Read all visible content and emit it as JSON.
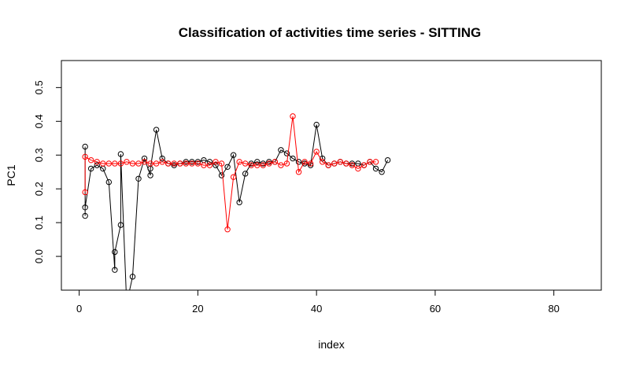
{
  "chart_data": {
    "type": "line",
    "title": "Classification of activities time series -  SITTING",
    "xlabel": "index",
    "ylabel": "PC1",
    "xlim": [
      -3,
      88
    ],
    "ylim": [
      -0.1,
      0.58
    ],
    "x_ticks": [
      0,
      20,
      40,
      60,
      80
    ],
    "x_tick_labels": [
      "0",
      "20",
      "40",
      "60",
      "80"
    ],
    "y_ticks": [
      0.0,
      0.1,
      0.2,
      0.3,
      0.4,
      0.5
    ],
    "y_tick_labels": [
      "0.0",
      "0.1",
      "0.2",
      "0.3",
      "0.4",
      "0.5"
    ],
    "grid": false,
    "legend": "none",
    "markers": "open-circle",
    "series": [
      {
        "color": "#000000",
        "x": [
          1,
          1,
          1,
          2,
          3,
          4,
          5,
          6,
          6,
          7,
          7,
          8,
          9,
          10,
          11,
          12,
          12,
          13,
          14,
          15,
          16,
          17,
          18,
          19,
          20,
          21,
          22,
          23,
          24,
          25,
          26,
          27,
          28,
          29,
          30,
          31,
          32,
          33,
          34,
          35,
          36,
          37,
          38,
          39,
          40,
          41,
          42,
          43,
          44,
          45,
          46,
          47,
          48,
          49,
          50,
          51,
          52
        ],
        "y": [
          0.325,
          0.12,
          0.145,
          0.26,
          0.27,
          0.26,
          0.22,
          -0.04,
          0.013,
          0.093,
          0.303,
          -0.14,
          -0.06,
          0.23,
          0.29,
          0.24,
          0.26,
          0.375,
          0.29,
          0.275,
          0.27,
          0.275,
          0.28,
          0.28,
          0.28,
          0.285,
          0.28,
          0.27,
          0.24,
          0.265,
          0.3,
          0.16,
          0.245,
          0.275,
          0.28,
          0.275,
          0.28,
          0.28,
          0.315,
          0.305,
          0.29,
          0.28,
          0.275,
          0.27,
          0.39,
          0.29,
          0.27,
          0.275,
          0.28,
          0.275,
          0.275,
          0.275,
          0.27,
          0.28,
          0.26,
          0.25,
          0.285
        ]
      },
      {
        "color": "#ff0000",
        "x": [
          1,
          1,
          2,
          3,
          4,
          5,
          6,
          7,
          8,
          9,
          10,
          11,
          12,
          13,
          14,
          15,
          16,
          17,
          18,
          19,
          20,
          21,
          22,
          23,
          24,
          25,
          26,
          27,
          28,
          29,
          30,
          31,
          32,
          33,
          34,
          35,
          36,
          37,
          38,
          39,
          40,
          41,
          42,
          43,
          44,
          45,
          46,
          47,
          48,
          49,
          50
        ],
        "y": [
          0.19,
          0.295,
          0.285,
          0.28,
          0.275,
          0.275,
          0.275,
          0.275,
          0.28,
          0.275,
          0.275,
          0.28,
          0.275,
          0.275,
          0.28,
          0.275,
          0.275,
          0.275,
          0.275,
          0.275,
          0.275,
          0.27,
          0.27,
          0.28,
          0.275,
          0.08,
          0.235,
          0.28,
          0.275,
          0.27,
          0.27,
          0.27,
          0.275,
          0.28,
          0.27,
          0.275,
          0.415,
          0.25,
          0.28,
          0.275,
          0.31,
          0.28,
          0.27,
          0.275,
          0.28,
          0.275,
          0.27,
          0.26,
          0.27,
          0.28,
          0.28
        ]
      }
    ]
  }
}
